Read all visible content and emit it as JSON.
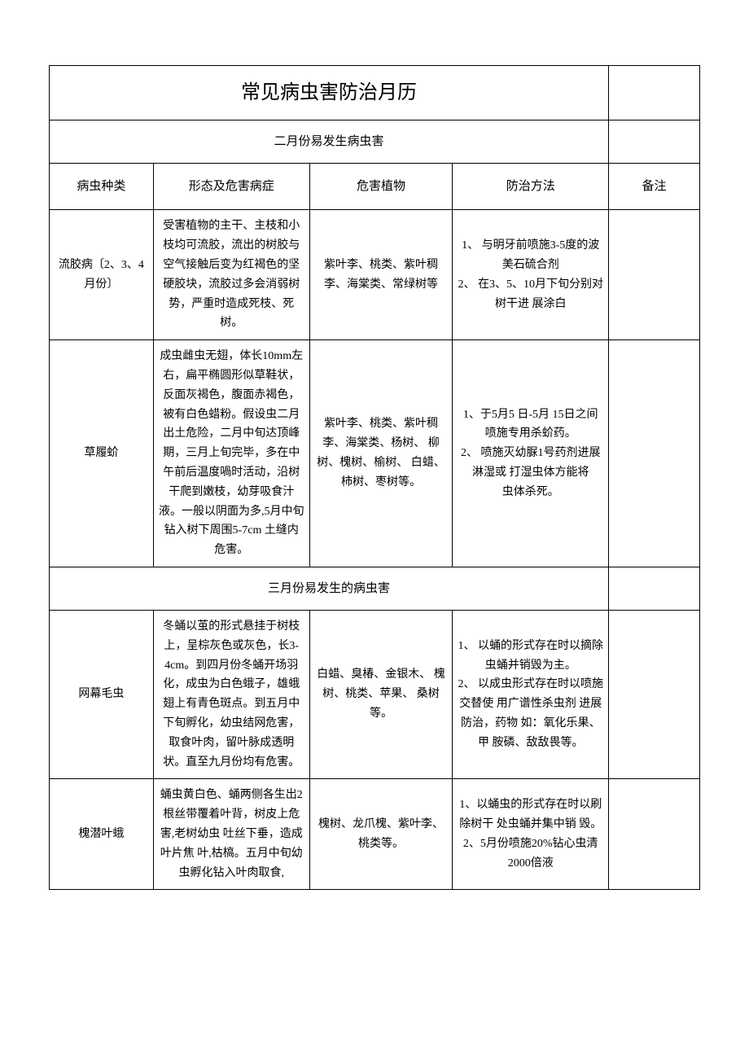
{
  "title": "常见病虫害防治月历",
  "headers": {
    "col1": "病虫种类",
    "col2": "形态及危害病症",
    "col3": "危害植物",
    "col4": "防治方法",
    "col5": "备注"
  },
  "sections": {
    "feb": "二月份易发生病虫害",
    "mar": "三月份易发生的病虫害"
  },
  "rows": {
    "r1": {
      "name": "流胶病〔2、3、4月份〕",
      "symptom": "受害植物的主干、主枝和小枝均可流胶，流出的树胶与空气接触后变为红褐色的坚硬胶块，流胶过多会消弱树势，严重时造成死枝、死树。",
      "plants": "紫叶李、桃类、紫叶稠李、海棠类、常绿树等",
      "control": "1、 与明牙前喷施3-5度的波美石硫合剂\n2、 在3、5、10月下旬分别对树干进 展涂白",
      "note": ""
    },
    "r2": {
      "name": "草履蚧",
      "symptom": "成虫雌虫无翅，体长10mm左右，扁平椭圆形似草鞋状，反面灰褐色，腹面赤褐色，被有白色蜡粉。假设虫二月出土危险，二月中旬达顶峰期，三月上旬完毕，多在中午前后温度喎时活动，沿树干爬到嫩枝，幼芽吸食汁液。一般以阴面为多,5月中旬钻入树下周围5-7cm 土缝内危害。",
      "plants": "紫叶李、桃类、紫叶稠李、海棠类、杨树、 柳树、槐树、榆树、 白蜡、柿树、枣树等。",
      "control": "1、于5月5 日-5月 15日之间喷施专用杀蚧药。\n2、 喷施灭幼脲1号药剂进展淋湿或 打湿虫体方能将\n虫体杀死。",
      "note": ""
    },
    "r3": {
      "name": "网幕毛虫",
      "symptom": "冬蛹以茧的形式悬挂于树枝上，呈棕灰色或灰色，长3-4cm。到四月份冬蛹开场羽化，成虫为白色蛾子，雄蛾翅上有青色斑点。到五月中下旬孵化，幼虫结网危害，取食叶肉，留叶脉成透明状。直至九月份均有危害。",
      "plants": "白蜡、臭椿、金银木、 槐树、桃类、苹果、 桑树等。",
      "control": "1、 以蛹的形式存在时以摘除虫蛹并销毁为主。\n2、 以成虫形式存在时以喷施交替使 用广谱性杀虫剂 进展防治，药物 如：氧化乐果、甲 胺磷、敌敌畏等。",
      "note": ""
    },
    "r4": {
      "name": "槐潜叶蛾",
      "symptom": "蛹虫黄白色、蛹两侧各生出2根丝带覆着叶背，树皮上危害,老树幼虫 吐丝下垂，造成叶片焦 叶,枯槁。五月中旬幼 虫孵化钻入叶肉取食,",
      "plants": "槐树、龙爪槐、紫叶李、桃类等。",
      "control": "1、以蛹虫的形式存在时以刷除树干 处虫蛹并集中销 毁。\n2、5月份喷施20%钻心虫清2000倍液",
      "note": ""
    }
  }
}
